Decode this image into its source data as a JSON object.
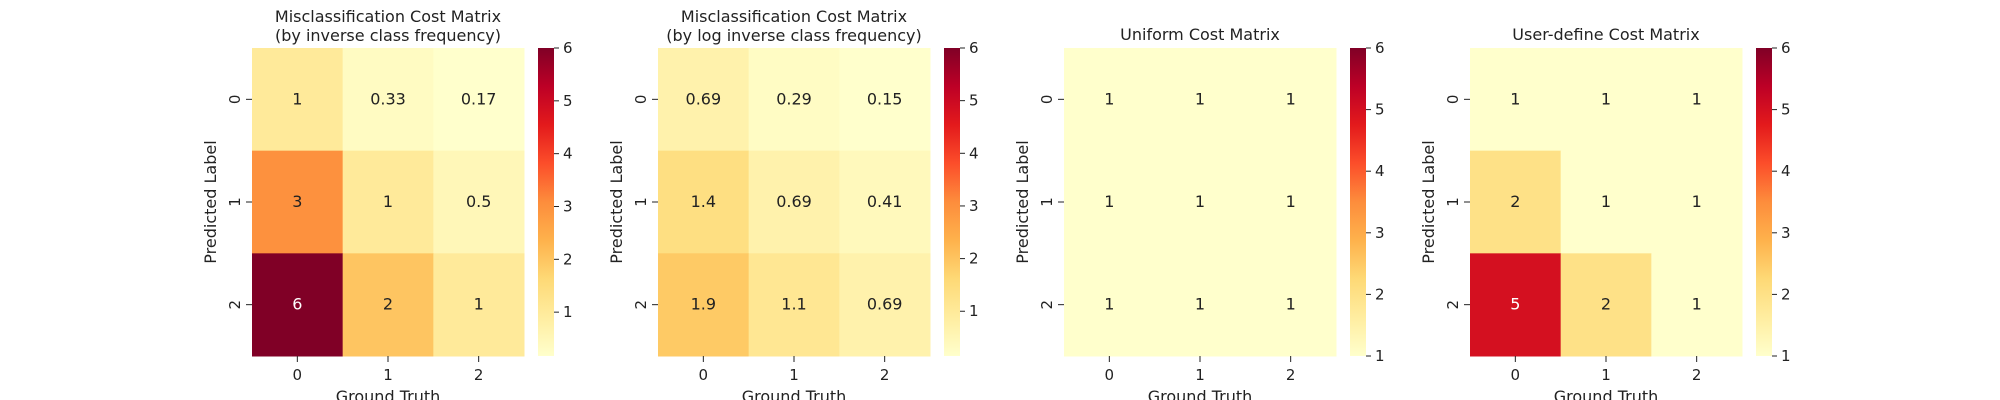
{
  "chart_data": [
    {
      "type": "heatmap",
      "title": "Misclassification Cost Matrix\n(by inverse class frequency)",
      "xlabel": "Ground Truth",
      "ylabel": "Predicted Label",
      "x_ticks": [
        "0",
        "1",
        "2"
      ],
      "y_ticks": [
        "0",
        "1",
        "2"
      ],
      "values": [
        [
          1,
          0.33,
          0.17
        ],
        [
          3,
          1,
          0.5
        ],
        [
          6,
          2,
          1
        ]
      ],
      "labels": [
        [
          "1",
          "0.33",
          "0.17"
        ],
        [
          "3",
          "1",
          "0.5"
        ],
        [
          "6",
          "2",
          "1"
        ]
      ],
      "colormap": "YlOrRd",
      "colorbar": {
        "range": [
          0.17,
          6
        ],
        "ticks": [
          "1",
          "2",
          "3",
          "4",
          "5",
          "6"
        ]
      }
    },
    {
      "type": "heatmap",
      "title": "Misclassification Cost Matrix\n(by log inverse class frequency)",
      "xlabel": "Ground Truth",
      "ylabel": "Predicted Label",
      "x_ticks": [
        "0",
        "1",
        "2"
      ],
      "y_ticks": [
        "0",
        "1",
        "2"
      ],
      "values": [
        [
          0.69,
          0.29,
          0.15
        ],
        [
          1.4,
          0.69,
          0.41
        ],
        [
          1.9,
          1.1,
          0.69
        ]
      ],
      "labels": [
        [
          "0.69",
          "0.29",
          "0.15"
        ],
        [
          "1.4",
          "0.69",
          "0.41"
        ],
        [
          "1.9",
          "1.1",
          "0.69"
        ]
      ],
      "colormap": "YlOrRd",
      "colorbar": {
        "range": [
          0.15,
          6
        ],
        "ticks": [
          "1",
          "2",
          "3",
          "4",
          "5",
          "6"
        ]
      }
    },
    {
      "type": "heatmap",
      "title": "Uniform Cost Matrix",
      "xlabel": "Ground Truth",
      "ylabel": "Predicted Label",
      "x_ticks": [
        "0",
        "1",
        "2"
      ],
      "y_ticks": [
        "0",
        "1",
        "2"
      ],
      "values": [
        [
          1,
          1,
          1
        ],
        [
          1,
          1,
          1
        ],
        [
          1,
          1,
          1
        ]
      ],
      "labels": [
        [
          "1",
          "1",
          "1"
        ],
        [
          "1",
          "1",
          "1"
        ],
        [
          "1",
          "1",
          "1"
        ]
      ],
      "colormap": "YlOrRd",
      "colorbar": {
        "range": [
          1,
          6
        ],
        "ticks": [
          "1",
          "2",
          "3",
          "4",
          "5",
          "6"
        ]
      }
    },
    {
      "type": "heatmap",
      "title": "User-define Cost Matrix",
      "xlabel": "Ground Truth",
      "ylabel": "Predicted Label",
      "x_ticks": [
        "0",
        "1",
        "2"
      ],
      "y_ticks": [
        "0",
        "1",
        "2"
      ],
      "values": [
        [
          1,
          1,
          1
        ],
        [
          2,
          1,
          1
        ],
        [
          5,
          2,
          1
        ]
      ],
      "labels": [
        [
          "1",
          "1",
          "1"
        ],
        [
          "2",
          "1",
          "1"
        ],
        [
          "5",
          "2",
          "1"
        ]
      ],
      "colormap": "YlOrRd",
      "colorbar": {
        "range": [
          1,
          6
        ],
        "ticks": [
          "1",
          "2",
          "3",
          "4",
          "5",
          "6"
        ]
      }
    }
  ]
}
